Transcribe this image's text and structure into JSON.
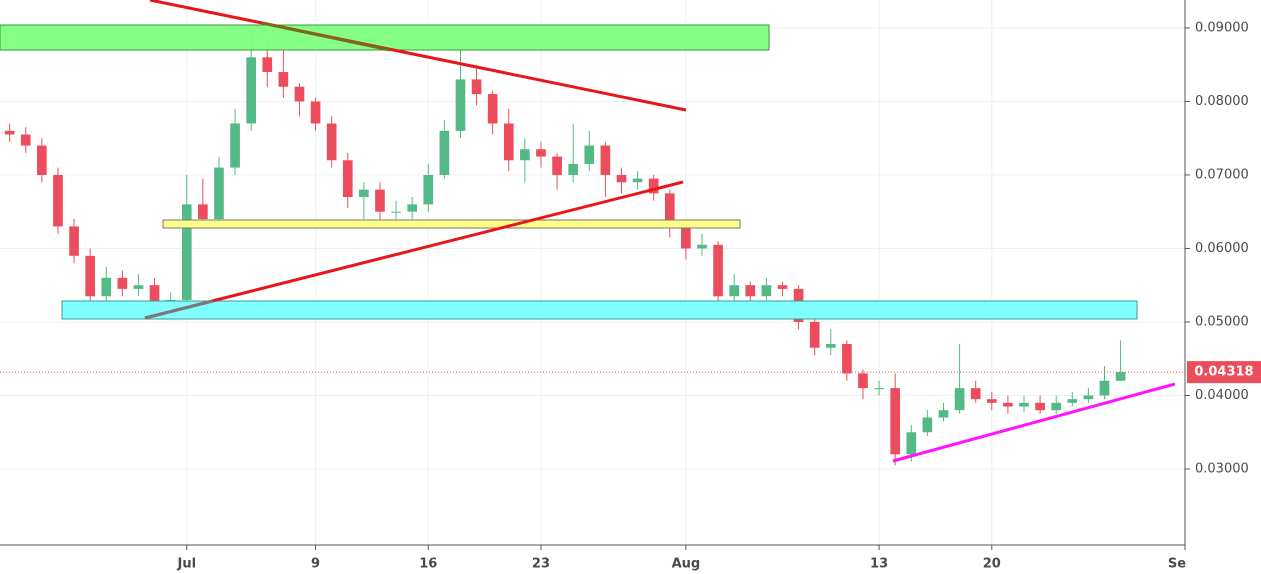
{
  "chart_data": {
    "type": "candlestick",
    "x": [
      -11,
      -10,
      -9,
      -8,
      -7,
      -6,
      -5,
      -4,
      -3,
      -2,
      -1,
      0,
      1,
      2,
      3,
      4,
      5,
      6,
      7,
      8,
      9,
      10,
      11,
      12,
      13,
      14,
      15,
      16,
      17,
      18,
      19,
      20,
      21,
      22,
      23,
      24,
      25,
      26,
      27,
      28,
      29,
      30,
      31,
      32,
      33,
      34,
      35,
      36,
      37,
      38,
      39,
      40,
      41,
      42,
      43,
      44,
      45,
      46,
      47,
      48,
      49,
      50,
      51,
      52,
      53,
      54,
      55,
      56,
      57,
      58
    ],
    "open": [
      0.076,
      0.0755,
      0.074,
      0.07,
      0.063,
      0.059,
      0.0535,
      0.056,
      0.0545,
      0.055,
      0.0515,
      0.053,
      0.066,
      0.064,
      0.071,
      0.077,
      0.086,
      0.084,
      0.082,
      0.08,
      0.077,
      0.072,
      0.067,
      0.068,
      0.065,
      0.065,
      0.066,
      0.07,
      0.076,
      0.083,
      0.081,
      0.077,
      0.072,
      0.0735,
      0.0725,
      0.07,
      0.0715,
      0.074,
      0.07,
      0.069,
      0.0695,
      0.0675,
      0.063,
      0.06,
      0.0605,
      0.0535,
      0.055,
      0.0535,
      0.055,
      0.0545,
      0.05,
      0.0465,
      0.047,
      0.043,
      0.041,
      0.041,
      0.032,
      0.035,
      0.037,
      0.038,
      0.041,
      0.0395,
      0.039,
      0.0385,
      0.039,
      0.038,
      0.039,
      0.0395,
      0.04,
      0.042
    ],
    "high": [
      0.077,
      0.0765,
      0.075,
      0.071,
      0.064,
      0.06,
      0.0575,
      0.057,
      0.0565,
      0.056,
      0.054,
      0.07,
      0.0695,
      0.0725,
      0.079,
      0.09,
      0.0885,
      0.087,
      0.0825,
      0.0805,
      0.078,
      0.073,
      0.069,
      0.069,
      0.0665,
      0.067,
      0.0715,
      0.0775,
      0.087,
      0.085,
      0.0815,
      0.079,
      0.075,
      0.0745,
      0.073,
      0.077,
      0.076,
      0.0745,
      0.071,
      0.0705,
      0.07,
      0.068,
      0.0635,
      0.062,
      0.061,
      0.0565,
      0.0555,
      0.056,
      0.0555,
      0.055,
      0.0505,
      0.049,
      0.0475,
      0.0435,
      0.042,
      0.043,
      0.036,
      0.038,
      0.039,
      0.047,
      0.042,
      0.0405,
      0.04,
      0.04,
      0.04,
      0.04,
      0.0405,
      0.041,
      0.044,
      0.0475
    ],
    "low": [
      0.0745,
      0.073,
      0.069,
      0.062,
      0.058,
      0.0515,
      0.0525,
      0.0535,
      0.0535,
      0.0505,
      0.0505,
      0.0525,
      0.063,
      0.0635,
      0.07,
      0.076,
      0.082,
      0.0805,
      0.078,
      0.076,
      0.071,
      0.0655,
      0.064,
      0.063,
      0.064,
      0.064,
      0.065,
      0.0695,
      0.075,
      0.0795,
      0.0755,
      0.0705,
      0.069,
      0.071,
      0.068,
      0.069,
      0.0705,
      0.067,
      0.0675,
      0.068,
      0.0665,
      0.0615,
      0.0585,
      0.059,
      0.0525,
      0.0525,
      0.0525,
      0.053,
      0.0535,
      0.049,
      0.0455,
      0.0455,
      0.042,
      0.0395,
      0.04,
      0.0305,
      0.031,
      0.0345,
      0.0365,
      0.0375,
      0.039,
      0.038,
      0.0375,
      0.0378,
      0.0375,
      0.0375,
      0.0385,
      0.039,
      0.0395,
      0.042
    ],
    "close": [
      0.0755,
      0.074,
      0.07,
      0.063,
      0.059,
      0.0535,
      0.056,
      0.0545,
      0.055,
      0.0515,
      0.053,
      0.066,
      0.064,
      0.071,
      0.077,
      0.086,
      0.084,
      0.082,
      0.08,
      0.077,
      0.072,
      0.067,
      0.068,
      0.065,
      0.065,
      0.066,
      0.07,
      0.076,
      0.083,
      0.081,
      0.077,
      0.072,
      0.0735,
      0.0725,
      0.07,
      0.0715,
      0.074,
      0.07,
      0.069,
      0.0695,
      0.0675,
      0.063,
      0.06,
      0.0605,
      0.0535,
      0.055,
      0.0535,
      0.055,
      0.0545,
      0.05,
      0.0465,
      0.047,
      0.043,
      0.041,
      0.041,
      0.032,
      0.035,
      0.037,
      0.038,
      0.041,
      0.0395,
      0.039,
      0.0385,
      0.039,
      0.038,
      0.039,
      0.0395,
      0.04,
      0.042,
      0.04318
    ],
    "up_color": "#53b987",
    "down_color": "#eb4d5c",
    "last_price": 0.04318,
    "xlim": [
      -11.6,
      62
    ],
    "xticks": [
      {
        "value": 0,
        "label": "Jul"
      },
      {
        "value": 8,
        "label": "9"
      },
      {
        "value": 15,
        "label": "16"
      },
      {
        "value": 22,
        "label": "23"
      },
      {
        "value": 31,
        "label": "Aug"
      },
      {
        "value": 43,
        "label": "13"
      },
      {
        "value": 50,
        "label": "20"
      },
      {
        "value": 62,
        "label": "Se"
      }
    ],
    "ylim": [
      0.01966,
      0.0938
    ],
    "yticks": [
      {
        "value": 0.03,
        "label": "0.03000"
      },
      {
        "value": 0.04,
        "label": "0.04000"
      },
      {
        "value": 0.05,
        "label": "0.05000"
      },
      {
        "value": 0.06,
        "label": "0.06000"
      },
      {
        "value": 0.07,
        "label": "0.07000"
      },
      {
        "value": 0.08,
        "label": "0.08000"
      },
      {
        "value": 0.09,
        "label": "0.09000"
      }
    ],
    "grid": true
  }
}
